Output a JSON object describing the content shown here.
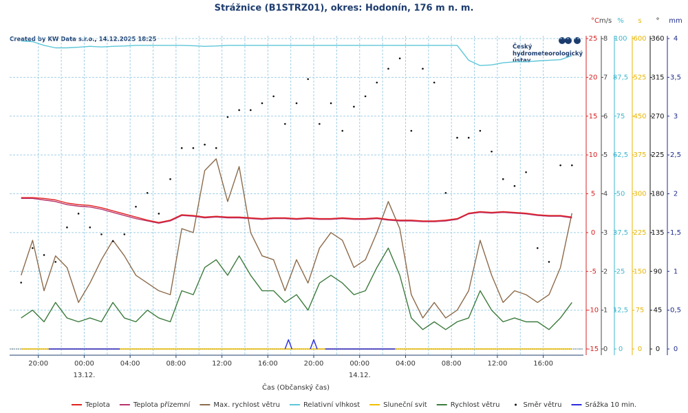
{
  "chart_data": {
    "type": "line",
    "title": "Strážnice (B1STRZ01), okres: Hodonín, 176 m n. m.",
    "note": "Created by KW Data s.r.o., 14.12.2025 18:25",
    "logo": [
      "Český",
      "hydrometeorologický",
      "ústav"
    ],
    "x_label": "Čas (Občanský čas)",
    "grid": true,
    "xlim": [
      -6.5,
      43.5
    ],
    "xticks": [
      {
        "value": -4,
        "label": "20:00"
      },
      {
        "value": 0,
        "label": "00:00"
      },
      {
        "value": 4,
        "label": "04:00"
      },
      {
        "value": 8,
        "label": "08:00"
      },
      {
        "value": 12,
        "label": "12:00"
      },
      {
        "value": 16,
        "label": "16:00"
      },
      {
        "value": 20,
        "label": "20:00"
      },
      {
        "value": 24,
        "label": "00:00"
      },
      {
        "value": 28,
        "label": "04:00"
      },
      {
        "value": 32,
        "label": "08:00"
      },
      {
        "value": 36,
        "label": "12:00"
      },
      {
        "value": 40,
        "label": "16:00"
      }
    ],
    "xdate_ticks": [
      {
        "value": 0,
        "label": "13.12."
      },
      {
        "value": 24,
        "label": "14.12."
      }
    ],
    "axes": [
      {
        "label": "°C",
        "color": "#d42020",
        "lim": [
          -15,
          25
        ],
        "ticks": [
          -15,
          -10,
          -5,
          0,
          5,
          10,
          15,
          20,
          25
        ]
      },
      {
        "label": "m/s",
        "color": "#444444",
        "lim": [
          0,
          8
        ],
        "ticks": [
          0,
          1,
          2,
          3,
          4,
          5,
          6,
          7,
          8
        ]
      },
      {
        "label": "%",
        "color": "#3fb6cc",
        "lim": [
          0,
          100
        ],
        "ticks": [
          0,
          {
            "value": 12.5,
            "label": "12,5"
          },
          25,
          {
            "value": 37.5,
            "label": "37,5"
          },
          50,
          {
            "value": 62.5,
            "label": "62,5"
          },
          75,
          {
            "value": 87.5,
            "label": "87,5"
          },
          100
        ]
      },
      {
        "label": "s",
        "color": "#e8b400",
        "lim": [
          0,
          600
        ],
        "ticks": [
          0,
          75,
          150,
          225,
          300,
          375,
          450,
          525,
          600
        ]
      },
      {
        "label": "°",
        "color": "#111111",
        "lim": [
          0,
          360
        ],
        "ticks": [
          0,
          45,
          90,
          135,
          180,
          225,
          270,
          315,
          360
        ]
      },
      {
        "label": "mm",
        "color": "#1d2a8c",
        "lim": [
          0,
          4
        ],
        "ticks": [
          0,
          {
            "value": 0.5,
            "label": "0,5"
          },
          1,
          {
            "value": 1.5,
            "label": "1,5"
          },
          2,
          {
            "value": 2.5,
            "label": "2,5"
          },
          3,
          {
            "value": 3.5,
            "label": "3,5"
          },
          4
        ]
      }
    ],
    "x": [
      -5.5,
      -4.5,
      -3.5,
      -2.5,
      -1.5,
      -0.5,
      0.5,
      1.5,
      2.5,
      3.5,
      4.5,
      5.5,
      6.5,
      7.5,
      8.5,
      9.5,
      10.5,
      11.5,
      12.5,
      13.5,
      14.5,
      15.5,
      16.5,
      17.5,
      18.5,
      19.5,
      20.5,
      21.5,
      22.5,
      23.5,
      24.5,
      25.5,
      26.5,
      27.5,
      28.5,
      29.5,
      30.5,
      31.5,
      32.5,
      33.5,
      34.5,
      35.5,
      36.5,
      37.5,
      38.5,
      39.5,
      40.5,
      41.5,
      42.5
    ],
    "series": [
      {
        "name": "Teplota",
        "color": "#e02020",
        "axis": 0,
        "style": "line",
        "values": [
          4.5,
          4.5,
          4.4,
          4.2,
          3.8,
          3.6,
          3.5,
          3.2,
          2.8,
          2.4,
          2.0,
          1.6,
          1.3,
          1.6,
          2.3,
          2.2,
          2.0,
          2.1,
          2.0,
          2.0,
          1.9,
          1.8,
          1.9,
          1.9,
          1.8,
          1.9,
          1.8,
          1.8,
          1.9,
          1.8,
          1.8,
          1.9,
          1.7,
          1.6,
          1.6,
          1.5,
          1.5,
          1.6,
          1.8,
          2.5,
          2.7,
          2.6,
          2.7,
          2.6,
          2.5,
          2.3,
          2.2,
          2.2,
          2.0
        ]
      },
      {
        "name": "Teplota přízemní",
        "color": "#b8306a",
        "axis": 0,
        "style": "line",
        "values": [
          4.4,
          4.4,
          4.2,
          4.0,
          3.6,
          3.4,
          3.3,
          3.0,
          2.6,
          2.2,
          1.8,
          1.5,
          1.2,
          1.5,
          2.2,
          2.1,
          1.9,
          2.0,
          1.9,
          1.9,
          1.8,
          1.7,
          1.8,
          1.8,
          1.7,
          1.8,
          1.7,
          1.7,
          1.8,
          1.7,
          1.7,
          1.8,
          1.6,
          1.5,
          1.5,
          1.4,
          1.4,
          1.5,
          1.7,
          2.4,
          2.6,
          2.5,
          2.6,
          2.5,
          2.4,
          2.2,
          2.1,
          2.1,
          1.9
        ]
      },
      {
        "name": "Max. rychlost větru",
        "color": "#8c6a4a",
        "axis": 1,
        "style": "line",
        "values": [
          1.9,
          2.8,
          1.5,
          2.4,
          2.1,
          1.2,
          1.7,
          2.3,
          2.8,
          2.4,
          1.9,
          1.7,
          1.5,
          1.4,
          3.1,
          3.0,
          4.6,
          4.9,
          3.8,
          4.7,
          3.0,
          2.4,
          2.3,
          1.5,
          2.3,
          1.7,
          2.6,
          3.0,
          2.8,
          2.1,
          2.3,
          3.0,
          3.8,
          3.1,
          1.4,
          0.8,
          1.2,
          0.8,
          1.0,
          1.5,
          2.8,
          1.9,
          1.2,
          1.5,
          1.4,
          1.2,
          1.4,
          2.1,
          3.5
        ]
      },
      {
        "name": "Relativní vlhkost",
        "color": "#5cc6d8",
        "axis": 2,
        "style": "line",
        "values": [
          99.2,
          99.0,
          97.8,
          97.0,
          97.0,
          97.2,
          97.5,
          97.3,
          97.5,
          97.6,
          97.8,
          97.8,
          97.8,
          97.8,
          97.8,
          97.7,
          97.5,
          97.6,
          97.8,
          97.8,
          97.8,
          97.8,
          97.8,
          97.8,
          97.8,
          97.8,
          97.8,
          97.8,
          97.8,
          97.8,
          97.8,
          97.8,
          97.8,
          97.8,
          97.8,
          97.8,
          97.8,
          97.8,
          97.8,
          93.0,
          91.3,
          91.5,
          92.2,
          92.5,
          92.5,
          92.8,
          93.0,
          93.2,
          94.5
        ]
      },
      {
        "name": "Sluneční svit",
        "color": "#f0c000",
        "axis": 3,
        "style": "line",
        "values": [
          0,
          0,
          0,
          0,
          0,
          0,
          0,
          0,
          0,
          0,
          0,
          0,
          0,
          0,
          0,
          0,
          0,
          0,
          0,
          0,
          0,
          0,
          0,
          0,
          0,
          0,
          0,
          0,
          0,
          0,
          0,
          0,
          0,
          0,
          0,
          0,
          0,
          0,
          0,
          0,
          0,
          0,
          0,
          0,
          0,
          0,
          0,
          0,
          0
        ]
      },
      {
        "name": "Rychlost větru",
        "color": "#3c7a3c",
        "axis": 1,
        "style": "line",
        "values": [
          0.8,
          1.0,
          0.7,
          1.2,
          0.8,
          0.7,
          0.8,
          0.7,
          1.2,
          0.8,
          0.7,
          1.0,
          0.8,
          0.7,
          1.5,
          1.4,
          2.1,
          2.3,
          1.9,
          2.4,
          1.9,
          1.5,
          1.5,
          1.2,
          1.4,
          1.0,
          1.7,
          1.9,
          1.7,
          1.4,
          1.5,
          2.1,
          2.6,
          1.9,
          0.8,
          0.5,
          0.7,
          0.5,
          0.7,
          0.8,
          1.5,
          1.0,
          0.7,
          0.8,
          0.7,
          0.7,
          0.5,
          0.8,
          1.2
        ]
      },
      {
        "name": "Směr větru",
        "color": "#111111",
        "axis": 4,
        "style": "dots",
        "values": [
          77,
          117,
          109,
          101,
          141,
          157,
          141,
          133,
          125,
          133,
          165,
          181,
          157,
          197,
          233,
          233,
          237,
          233,
          269,
          277,
          277,
          285,
          293,
          261,
          285,
          313,
          261,
          285,
          253,
          281,
          293,
          309,
          325,
          337,
          253,
          325,
          309,
          181,
          245,
          245,
          253,
          229,
          197,
          189,
          205,
          117,
          101,
          213,
          213
        ]
      },
      {
        "name": "Srážka 10 min.",
        "color": "#2a2ae0",
        "axis": 5,
        "style": "line",
        "x": [
          -3.1,
          3.1,
          10,
          17.5,
          17.8,
          18.1,
          19,
          19.7,
          20.0,
          20.3,
          20.6,
          21.0,
          27.1
        ],
        "values": [
          0,
          0,
          null,
          0,
          0.12,
          0,
          null,
          0,
          0.12,
          0,
          null,
          0,
          0
        ]
      }
    ]
  }
}
